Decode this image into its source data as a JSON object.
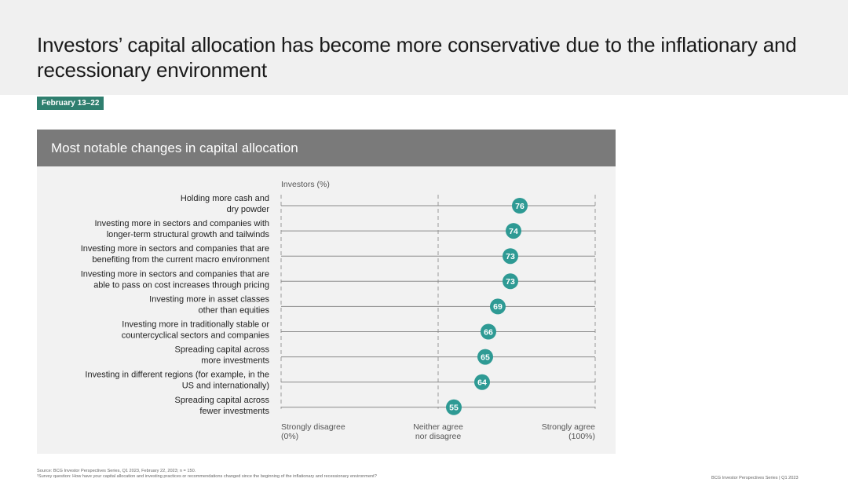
{
  "page": {
    "title": "Investors’ capital allocation has become more conservative due to the inflationary and recessionary environment",
    "date_tag": "February 13–22",
    "source": "Source: BCG Investor Perspectives Series, Q1 2023, February 22, 2023; n = 150.",
    "survey_question": "¹Survey question: How have your capital allocation and investing practices or recommendations changed since the beginning of the inflationary and recessionary environment?",
    "footer": "BCG Investor Perspectives Series | Q1 2023"
  },
  "colors": {
    "marker": "#2e9a94",
    "date_tag": "#2f7f6f",
    "header": "#7a7a7a",
    "panel": "#f2f2f2"
  },
  "chart_data": {
    "type": "scatter",
    "title": "Most notable changes in capital allocation",
    "axis_title": "Investors (%)",
    "xlim": [
      0,
      100
    ],
    "axis_labels": [
      {
        "value": 0,
        "lines": [
          "Strongly disagree",
          "(0%)"
        ],
        "align": "left"
      },
      {
        "value": 50,
        "lines": [
          "Neither agree",
          "nor disagree"
        ],
        "align": "center"
      },
      {
        "value": 100,
        "lines": [
          "Strongly agree",
          "(100%)"
        ],
        "align": "right"
      }
    ],
    "categories": [
      [
        "Holding more cash and",
        "dry powder"
      ],
      [
        "Investing more in sectors and companies with",
        "longer-term structural growth and tailwinds"
      ],
      [
        "Investing more in sectors and companies that are",
        "benefiting from the current macro environment"
      ],
      [
        "Investing more in sectors and companies that are",
        "able to pass on cost increases through pricing"
      ],
      [
        "Investing more in asset classes",
        "other than equities"
      ],
      [
        "Investing more in traditionally stable or",
        "countercyclical sectors and companies"
      ],
      [
        "Spreading capital across",
        "more investments"
      ],
      [
        "Investing in different regions (for example, in the",
        "US and internationally)"
      ],
      [
        "Spreading capital across",
        "fewer investments"
      ]
    ],
    "values": [
      76,
      74,
      73,
      73,
      69,
      66,
      65,
      64,
      55
    ]
  }
}
